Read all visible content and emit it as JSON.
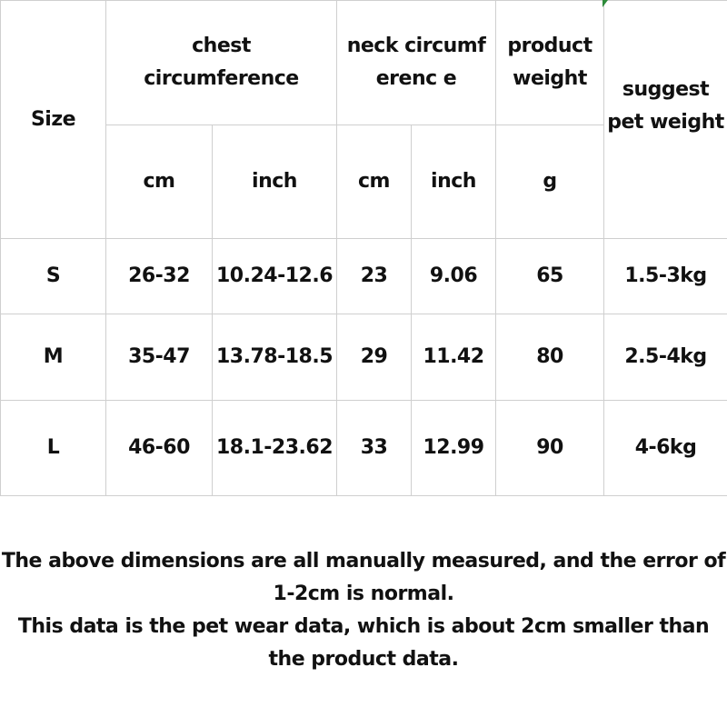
{
  "table": {
    "headers": {
      "size": "Size",
      "chest": "chest circumference",
      "neck": "neck circumferenc e",
      "product_weight": "product weight",
      "pet_weight": "suggest pet weight",
      "units": [
        "cm",
        "inch",
        "cm",
        "inch",
        "g"
      ]
    },
    "rows": [
      [
        "S",
        "26-32",
        "10.24-12.6",
        "23",
        "9.06",
        "65",
        "1.5-3kg"
      ],
      [
        "M",
        "35-47",
        "13.78-18.5",
        "29",
        "11.42",
        "80",
        "2.5-4kg"
      ],
      [
        "L",
        "46-60",
        "18.1-23.62",
        "33",
        "12.99",
        "90",
        "4-6kg"
      ]
    ]
  },
  "notes": [
    "The above dimensions are all manually measured, and the error of 1-2cm is normal.",
    "This data is the pet wear data, which is about 2cm smaller than the product data."
  ]
}
